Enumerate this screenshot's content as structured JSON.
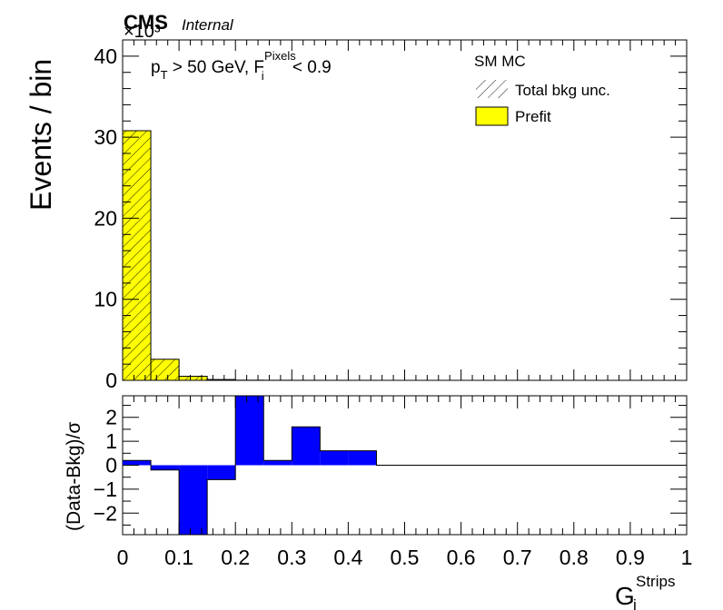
{
  "header": {
    "cms_label": "CMS",
    "internal_label": "Internal",
    "exponent_label": "×10³"
  },
  "annotation": {
    "cut_prefix": "p",
    "cut_sub": "T",
    "cut_mid": " > 50 GeV, F",
    "cut_sup": "Pixels",
    "cut_sub2": "i",
    "cut_suffix": " < 0.9"
  },
  "legend": {
    "title": "SM MC",
    "items": [
      {
        "label": "Total bkg unc.",
        "style": "hatch"
      },
      {
        "label": "Prefit",
        "style": "fill",
        "color": "#ffff00"
      }
    ]
  },
  "chart_data": [
    {
      "type": "bar",
      "panel": "main",
      "ylabel": "Events / bin",
      "yunit_scale": "×10³",
      "ylim": [
        0,
        42
      ],
      "xlim": [
        0,
        1
      ],
      "yticks": [
        "0",
        "10",
        "20",
        "30",
        "40"
      ],
      "bin_edges": [
        0,
        0.05,
        0.1,
        0.15,
        0.2,
        0.25,
        0.3,
        0.35,
        0.4,
        0.45,
        0.5,
        0.55,
        0.6,
        0.65,
        0.7,
        0.75,
        0.8,
        0.85,
        0.9,
        0.95,
        1.0
      ],
      "series": [
        {
          "name": "Prefit",
          "color": "#ffff00",
          "hatched": true,
          "values": [
            30.8,
            2.6,
            0.5,
            0.1,
            0.02,
            0.01,
            0.005,
            0.003,
            0.002,
            0,
            0,
            0,
            0,
            0,
            0,
            0,
            0,
            0,
            0,
            0
          ]
        }
      ]
    },
    {
      "type": "bar",
      "panel": "ratio",
      "ylabel": "(Data-Bkg)/σ",
      "xlabel_main": "G",
      "xlabel_sup": "Strips",
      "xlabel_sub": "i",
      "ylim": [
        -2.9,
        2.9
      ],
      "xlim": [
        0,
        1
      ],
      "yticks": [
        "−2",
        "−1",
        "0",
        "1",
        "2"
      ],
      "xticks": [
        "0",
        "0.1",
        "0.2",
        "0.3",
        "0.4",
        "0.5",
        "0.6",
        "0.7",
        "0.8",
        "0.9",
        "1"
      ],
      "bin_edges": [
        0,
        0.05,
        0.1,
        0.15,
        0.2,
        0.25,
        0.3,
        0.35,
        0.4,
        0.45,
        0.5,
        0.55,
        0.6,
        0.65,
        0.7,
        0.75,
        0.8,
        0.85,
        0.9,
        0.95,
        1.0
      ],
      "series": [
        {
          "name": "",
          "color": "#0000ff",
          "values": [
            0.2,
            -0.2,
            -2.9,
            -0.6,
            2.9,
            0.2,
            1.6,
            0.6,
            0.6,
            0,
            0,
            0,
            0,
            0,
            0,
            0,
            0,
            0,
            0,
            0
          ]
        }
      ]
    }
  ]
}
